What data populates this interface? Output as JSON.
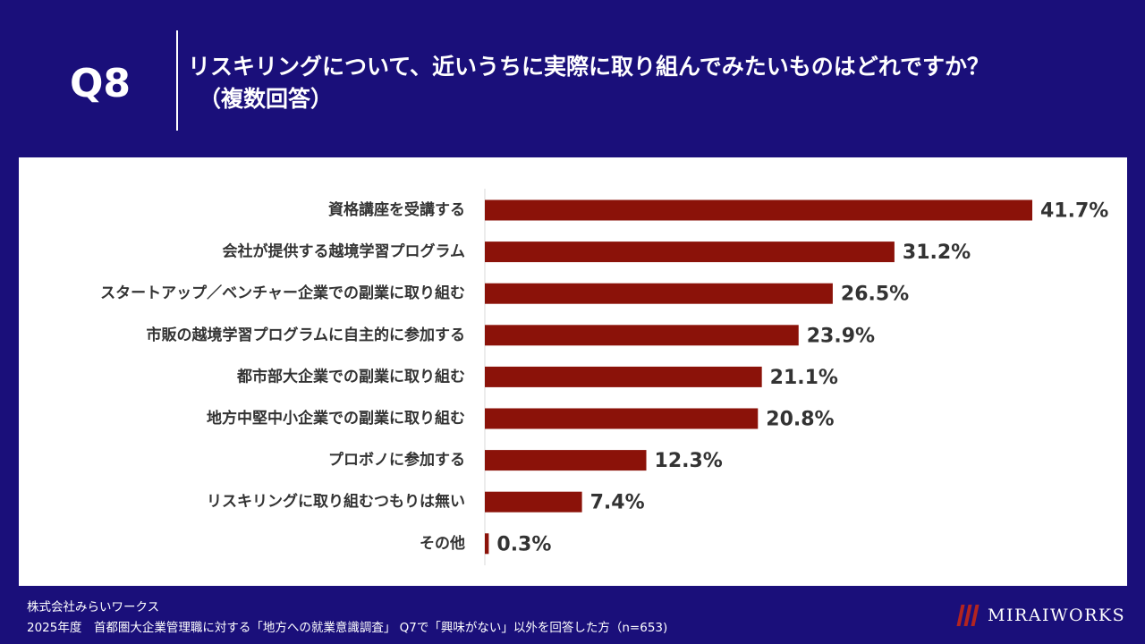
{
  "header": {
    "q_label": "Q8",
    "title": "リスキリングについて、近いうちに実際に取り組んでみたいものはどれですか？",
    "subtitle": "（複数回答）"
  },
  "chart_data": {
    "type": "bar",
    "orientation": "horizontal",
    "title": "リスキリングについて、近いうちに実際に取り組んでみたいものはどれですか？（複数回答）",
    "categories": [
      "資格講座を受講する",
      "会社が提供する越境学習プログラム",
      "スタートアップ／ベンチャー企業での副業に取り組む",
      "市販の越境学習プログラムに自主的に参加する",
      "都市部大企業での副業に取り組む",
      "地方中堅中小企業での副業に取り組む",
      "プロボノに参加する",
      "リスキリングに取り組むつもりは無い",
      "その他"
    ],
    "values": [
      41.7,
      31.2,
      26.5,
      23.9,
      21.1,
      20.8,
      12.3,
      7.4,
      0.3
    ],
    "value_labels": [
      "41.7%",
      "31.2%",
      "26.5%",
      "23.9%",
      "21.1%",
      "20.8%",
      "12.3%",
      "7.4%",
      "0.3%"
    ],
    "unit": "%",
    "xlim": [
      0,
      41.7
    ],
    "bar_color": "#8b1209",
    "grid": false,
    "xlabel": "",
    "ylabel": ""
  },
  "footer": {
    "company": "株式会社みらいワークス",
    "source": "2025年度　首都圏大企業管理職に対する「地方への就業意識調査」 Q7で「興味がない」以外を回答した方（n=653)"
  },
  "logo": {
    "text": "MIRAIWORKS"
  },
  "colors": {
    "background": "#1a0f7a",
    "panel": "#ffffff",
    "bar": "#8b1209",
    "logo_mark": "#b22420"
  }
}
